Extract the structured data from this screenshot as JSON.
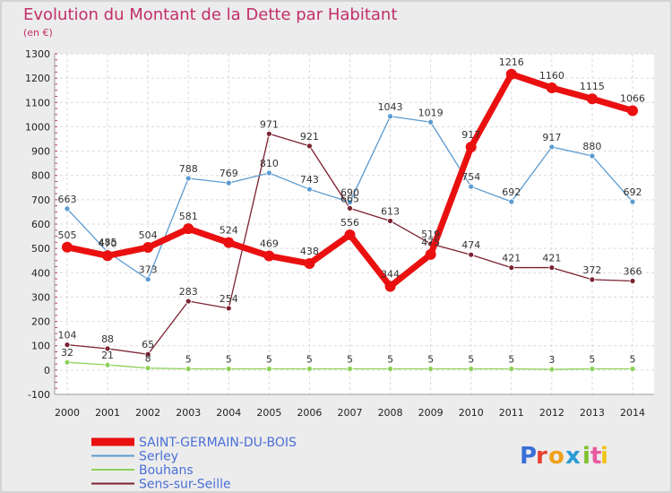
{
  "chart_data": {
    "type": "line",
    "title": "Evolution du Montant de la Dette par Habitant",
    "subtitle": "(en €)",
    "x": [
      "2000",
      "2001",
      "2002",
      "2003",
      "2004",
      "2005",
      "2006",
      "2007",
      "2008",
      "2009",
      "2010",
      "2011",
      "2012",
      "2013",
      "2014"
    ],
    "ylim": [
      -100,
      1300
    ],
    "yticks": [
      -100,
      0,
      100,
      200,
      300,
      400,
      500,
      600,
      700,
      800,
      900,
      1000,
      1100,
      1200,
      1300
    ],
    "grid": true,
    "legend_position": "bottom-left",
    "series": [
      {
        "name": "Sens-sur-Seille",
        "color": "#7a2230",
        "values": [
          104,
          88,
          65,
          283,
          254,
          971,
          921,
          665,
          613,
          519,
          474,
          421,
          421,
          372,
          366
        ]
      },
      {
        "name": "Bouhans",
        "color": "#8ed15a",
        "values": [
          32,
          21,
          8,
          5,
          5,
          5,
          5,
          5,
          5,
          5,
          5,
          5,
          3,
          5,
          5
        ]
      },
      {
        "name": "Serley",
        "color": "#5a9ad0",
        "values": [
          663,
          485,
          373,
          788,
          769,
          810,
          743,
          690,
          1043,
          1019,
          754,
          692,
          917,
          880,
          692
        ]
      },
      {
        "name": "SAINT-GERMAIN-DU-BOIS",
        "color": "#ea1010",
        "values": [
          505,
          470,
          504,
          581,
          524,
          469,
          438,
          556,
          344,
          475,
          917,
          1216,
          1160,
          1115,
          1066
        ]
      }
    ],
    "legend_order": [
      "SAINT-GERMAIN-DU-BOIS",
      "Serley",
      "Bouhans",
      "Sens-sur-Seille"
    ]
  },
  "brand": {
    "letters": [
      "P",
      "r",
      "o",
      "x",
      "i",
      "t",
      "i"
    ],
    "colors": [
      "#3b6fd8",
      "#e8412f",
      "#f0a01a",
      "#2a9bd6",
      "#7dc02f",
      "#e85aa0",
      "#f0c419"
    ]
  }
}
